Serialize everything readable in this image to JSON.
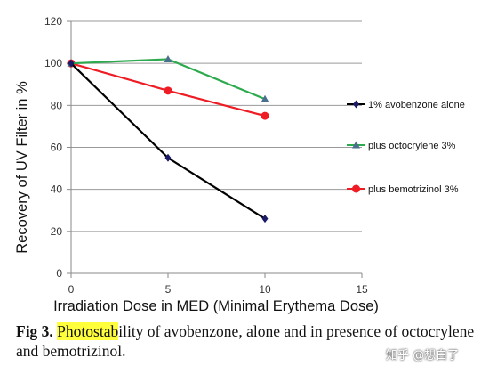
{
  "chart_data": {
    "type": "line",
    "x": [
      0,
      5,
      10
    ],
    "xlim": [
      0,
      15
    ],
    "ylim": [
      0,
      120
    ],
    "xticks": [
      0,
      5,
      10,
      15
    ],
    "yticks": [
      0,
      20,
      40,
      60,
      80,
      100,
      120
    ],
    "xlabel": "Irradiation Dose in MED (Minimal Erythema Dose)",
    "ylabel": "Recovery of UV Filter  in %",
    "grid": "horizontal",
    "legend_position": "right",
    "series": [
      {
        "name": "1% avobenzone alone",
        "values": [
          100,
          55,
          26
        ],
        "color": "#000000",
        "marker": "diamond",
        "marker_color": "#1a1a66"
      },
      {
        "name": "plus octocrylene 3%",
        "values": [
          100,
          102,
          83
        ],
        "color": "#2daa4e",
        "marker": "triangle",
        "marker_color": "#4a6f8f"
      },
      {
        "name": "plus bemotrizinol 3%",
        "values": [
          100,
          87,
          75
        ],
        "color": "#ee1c24",
        "marker": "circle",
        "marker_color": "#ee1c24"
      }
    ]
  },
  "caption": {
    "label": "Fig 3.",
    "highlight": "Photostab",
    "text": "ility of avobenzone, alone and in presence of octocrylene and bemotrizinol."
  },
  "watermark": "知乎 @想白了"
}
